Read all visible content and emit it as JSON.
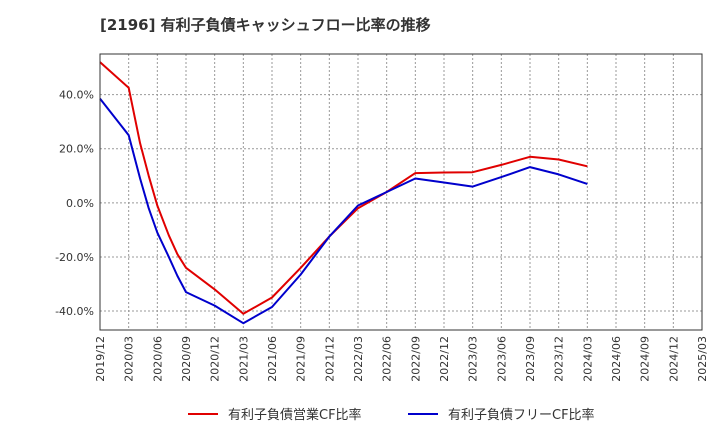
{
  "chart_data": {
    "type": "line",
    "title": "[2196]  有利子負債キャッシュフロー比率の推移",
    "xlabel": "",
    "ylabel": "",
    "x": [
      "2019/12",
      "2020/03",
      "2020/06",
      "2020/09",
      "2020/12",
      "2021/03",
      "2021/06",
      "2021/09",
      "2021/12",
      "2022/03",
      "2022/06",
      "2022/09",
      "2022/12",
      "2023/03",
      "2023/06",
      "2023/09",
      "2023/12",
      "2024/03",
      "2024/06",
      "2024/09",
      "2024/12",
      "2025/03"
    ],
    "ylim": [
      -47,
      55
    ],
    "yticks": [
      {
        "value": 40,
        "label": "40.0%"
      },
      {
        "value": 20,
        "label": "20.0%"
      },
      {
        "value": 0,
        "label": "0.0%"
      },
      {
        "value": -20,
        "label": "-20.0%"
      },
      {
        "value": -40,
        "label": "-40.0%"
      }
    ],
    "grid": true,
    "legend_position": "bottom",
    "series": [
      {
        "name": "有利子負債営業CF比率",
        "color": "#e00000",
        "points": [
          [
            0,
            52
          ],
          [
            1,
            42.5
          ],
          [
            1.4,
            22
          ],
          [
            1.7,
            10
          ],
          [
            2,
            -1
          ],
          [
            2.4,
            -12
          ],
          [
            2.7,
            -19
          ],
          [
            3,
            -24
          ],
          [
            4,
            -32
          ],
          [
            5,
            -41
          ],
          [
            6,
            -35
          ],
          [
            7,
            -24
          ],
          [
            8,
            -12.5
          ],
          [
            9,
            -2
          ],
          [
            10,
            4
          ],
          [
            11,
            11
          ],
          [
            12,
            11.2
          ],
          [
            13,
            11.3
          ],
          [
            14,
            14
          ],
          [
            15,
            17
          ],
          [
            16,
            16
          ],
          [
            17,
            13.5
          ]
        ]
      },
      {
        "name": "有利子負債フリーCF比率",
        "color": "#0000cc",
        "points": [
          [
            0,
            38.5
          ],
          [
            1,
            25
          ],
          [
            1.4,
            9
          ],
          [
            1.7,
            -2
          ],
          [
            2,
            -11
          ],
          [
            2.4,
            -20
          ],
          [
            2.7,
            -27
          ],
          [
            3,
            -33
          ],
          [
            4,
            -38
          ],
          [
            5,
            -44.5
          ],
          [
            6,
            -38.5
          ],
          [
            7,
            -26.5
          ],
          [
            8,
            -12.5
          ],
          [
            9,
            -1
          ],
          [
            10,
            4
          ],
          [
            11,
            9
          ],
          [
            12,
            7.5
          ],
          [
            13,
            6
          ],
          [
            14,
            9.5
          ],
          [
            15,
            13.2
          ],
          [
            16,
            10.5
          ],
          [
            17,
            7
          ]
        ]
      }
    ]
  }
}
